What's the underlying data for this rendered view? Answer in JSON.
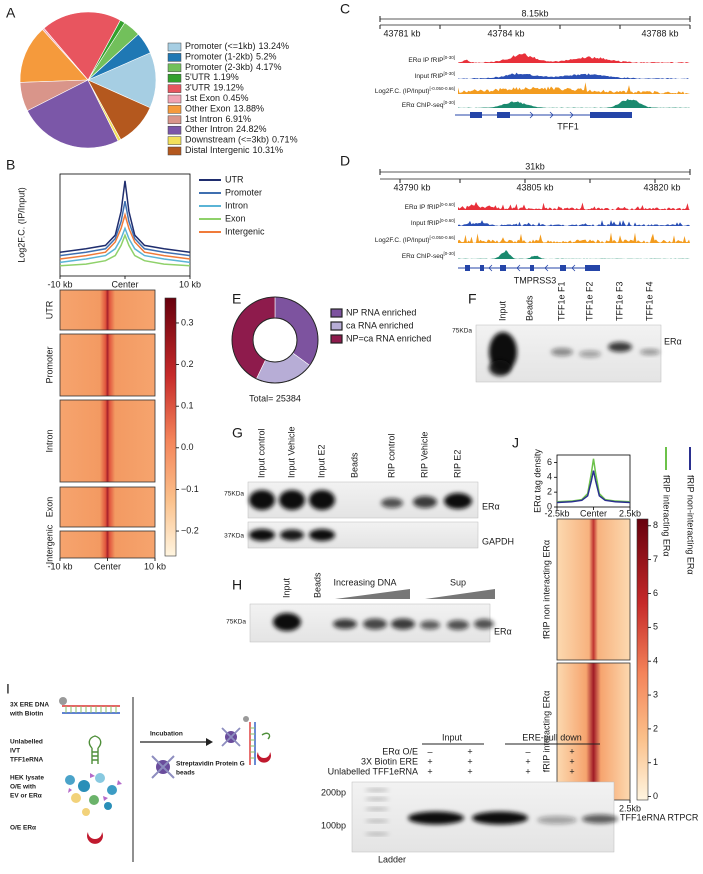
{
  "panel_letters": [
    "A",
    "B",
    "C",
    "D",
    "E",
    "F",
    "G",
    "H",
    "I",
    "J"
  ],
  "chart_data": [
    {
      "type": "pie",
      "categories": [
        "Promoter (<=1kb)",
        "Promoter (1-2kb)",
        "Promoter (2-3kb)",
        "5'UTR",
        "3'UTR",
        "1st Exon",
        "Other Exon",
        "1st Intron",
        "Other Intron",
        "Downstream (<=3kb)",
        "Distal Intergenic"
      ],
      "values": [
        13.24,
        5.2,
        4.17,
        1.19,
        19.12,
        0.45,
        13.88,
        6.91,
        24.82,
        0.71,
        10.31
      ],
      "value_labels": [
        "13.24%",
        "5.2%",
        "4.17%",
        "1.19%",
        "19.12%",
        "0.45%",
        "13.88%",
        "6.91%",
        "24.82%",
        "0.71%",
        "10.31%"
      ],
      "colors": [
        "#a6cee3",
        "#1f78b4",
        "#72c05b",
        "#33a02c",
        "#e8555f",
        "#f2a3b3",
        "#f59a3c",
        "#d9958a",
        "#7b57a8",
        "#f2e05a",
        "#b4581e"
      ]
    },
    {
      "type": "line",
      "y_label": "Log2F.C. (IP/Input)",
      "x": [
        -10,
        -6,
        -3,
        -1.5,
        -0.6,
        0,
        0.6,
        1.5,
        3,
        6,
        10
      ],
      "xlim": [
        -10,
        10
      ],
      "xticks": [
        {
          "value": -10,
          "label": "-10 kb"
        },
        {
          "value": 0,
          "label": "Center"
        },
        {
          "value": 10,
          "label": "10 kb"
        }
      ],
      "ylim": [
        0,
        0.3
      ],
      "legend": "right",
      "series": [
        {
          "name": "UTR",
          "color": "#1f2d6e",
          "values": [
            0.07,
            0.08,
            0.09,
            0.12,
            0.19,
            0.28,
            0.19,
            0.12,
            0.09,
            0.08,
            0.07
          ]
        },
        {
          "name": "Promoter",
          "color": "#3f6fb0",
          "values": [
            0.06,
            0.07,
            0.08,
            0.11,
            0.16,
            0.22,
            0.16,
            0.11,
            0.08,
            0.07,
            0.06
          ]
        },
        {
          "name": "Intron",
          "color": "#5ab4d6",
          "values": [
            0.04,
            0.05,
            0.06,
            0.08,
            0.11,
            0.14,
            0.11,
            0.08,
            0.06,
            0.05,
            0.04
          ]
        },
        {
          "name": "Exon",
          "color": "#8fd16a",
          "values": [
            0.03,
            0.035,
            0.045,
            0.06,
            0.09,
            0.12,
            0.09,
            0.06,
            0.045,
            0.035,
            0.03
          ]
        },
        {
          "name": "Intergenic",
          "color": "#f07b3a",
          "values": [
            0.05,
            0.06,
            0.07,
            0.1,
            0.14,
            0.18,
            0.14,
            0.1,
            0.07,
            0.06,
            0.05
          ]
        }
      ]
    },
    {
      "type": "heatmap",
      "row_labels": [
        "UTR",
        "Promoter",
        "Intron",
        "Exon",
        "Intergenic"
      ],
      "xlim": [
        -10,
        10
      ],
      "xticks": [
        {
          "value": -10,
          "label": "-10 kb"
        },
        {
          "value": 0,
          "label": "Center"
        },
        {
          "value": 10,
          "label": "10 kb"
        }
      ],
      "clim": [
        -0.26,
        0.36
      ],
      "cticks": [
        0.3,
        0.2,
        0.1,
        {
          "value": 0,
          "label": "0.0"
        },
        {
          "value": -0.1,
          "label": "−0.1"
        },
        {
          "value": -0.2,
          "label": "−0.2"
        }
      ]
    },
    {
      "type": "donut",
      "categories": [
        "NP RNA enriched",
        "ca RNA enriched",
        "NP=ca RNA enriched"
      ],
      "values": [
        8900,
        5600,
        10884
      ],
      "colors": [
        "#7d539f",
        "#b7add6",
        "#8e1b4c"
      ],
      "total_label": "Total= 25384"
    },
    {
      "type": "line",
      "y_label": "ERα tag density",
      "x": [
        -2.5,
        -1.5,
        -0.8,
        -0.4,
        -0.15,
        0,
        0.15,
        0.4,
        0.8,
        1.5,
        2.5
      ],
      "xlim": [
        -2.5,
        2.5
      ],
      "xticks": [
        {
          "value": -2.5,
          "label": "-2.5kb"
        },
        {
          "value": 0,
          "label": "Center"
        },
        {
          "value": 2.5,
          "label": "2.5kb"
        }
      ],
      "ylim": [
        0,
        7
      ],
      "yticks": [
        0,
        2,
        4,
        6
      ],
      "legend": "right",
      "series": [
        {
          "name": "fRIP interacting ERα",
          "color": "#6cc24a",
          "values": [
            0.7,
            0.8,
            1.0,
            1.8,
            4.5,
            6.5,
            4.5,
            1.8,
            1.0,
            0.8,
            0.7
          ]
        },
        {
          "name": "fRIP non-interacting ERα",
          "color": "#2a2f8f",
          "values": [
            0.6,
            0.7,
            0.9,
            1.5,
            3.5,
            4.9,
            3.5,
            1.5,
            0.9,
            0.7,
            0.6
          ]
        }
      ]
    },
    {
      "type": "heatmap",
      "row_labels": [
        "fRIP non interacting ERα",
        "fRIP interacting ERα"
      ],
      "xlim": [
        -2.5,
        2.5
      ],
      "xticks": [
        {
          "value": -2.5,
          "label": "-2.5kb"
        },
        {
          "value": 0,
          "label": "Center"
        },
        {
          "value": 2.5,
          "label": "2.5kb"
        }
      ],
      "clim": [
        -0.1,
        8.2
      ],
      "cticks": [
        0,
        1,
        2,
        3,
        4,
        5,
        6,
        7,
        8
      ]
    }
  ],
  "figure": {
    "track_c": {
      "span": "8.15kb",
      "coords": [
        "43781 kb",
        "43784 kb",
        "43788 kb"
      ],
      "tracks": [
        {
          "name": "ERα IP fRIP",
          "range": "[0-30]"
        },
        {
          "name": "Input fRIP",
          "range": "[0-30]"
        },
        {
          "name": "Log2F.C. (IP/Input)",
          "range": "[-0.050-0.66]"
        },
        {
          "name": "ERα ChIP-seq",
          "range": "[0-30]"
        }
      ],
      "gene": "TFF1"
    },
    "track_d": {
      "span": "31kb",
      "coords": [
        "43790 kb",
        "43805 kb",
        "43820 kb"
      ],
      "tracks": [
        {
          "name": "ERα IP fRIP",
          "range": "[0-0.60]"
        },
        {
          "name": "Input fRIP",
          "range": "[0-0.60]"
        },
        {
          "name": "Log2F.C. (IP/Input)",
          "range": "[-0.050-0.66]"
        },
        {
          "name": "ERα ChIP-seq",
          "range": "[0-30]"
        }
      ],
      "gene": "TMPRSS3"
    },
    "gel_f": {
      "lanes": [
        "Input",
        "Beads",
        "TFF1e F1",
        "TFF1e F2",
        "TFF1e F3",
        "TFF1e F4"
      ],
      "marker": "75KDa",
      "protein": "ERα"
    },
    "gel_g": {
      "lanes": [
        "Input control",
        "Input Vehicle",
        "Input E2",
        "Beads",
        "RIP control",
        "RIP Vehicle",
        "RIP E2"
      ],
      "markers": [
        "75KDa",
        "37KDa"
      ],
      "proteins": [
        "ERα",
        "GAPDH"
      ]
    },
    "gel_h": {
      "lanes": [
        "Input",
        "Beads"
      ],
      "groups": [
        "Increasing DNA",
        "Sup"
      ],
      "marker": "75KDa",
      "protein": "ERα"
    },
    "schematic_i": {
      "items": [
        [
          "3X ERE DNA",
          "with Biotin"
        ],
        [
          "Unlabelled",
          "IVT",
          "TFF1eRNA"
        ],
        [
          "HEK lysate",
          "O/E with",
          "EV or ERα"
        ],
        [
          "O/E ERα"
        ]
      ],
      "step": "Incubation",
      "beads": [
        "Streptavidin Protein G",
        "beads"
      ]
    },
    "pulldown_i": {
      "groups": [
        "Input",
        "ERE-pull down"
      ],
      "rows": [
        {
          "label": "ERα O/E",
          "signs": [
            "–",
            "+",
            "–",
            "+"
          ]
        },
        {
          "label": "3X Biotin ERE",
          "signs": [
            "+",
            "+",
            "+",
            "+"
          ]
        },
        {
          "label": "Unlabelled TFF1eRNA",
          "signs": [
            "+",
            "+",
            "+",
            "+"
          ]
        }
      ],
      "markers": [
        "200bp",
        "100bp"
      ],
      "ladder": "Ladder",
      "product": "TFF1eRNA RTPCR"
    }
  }
}
